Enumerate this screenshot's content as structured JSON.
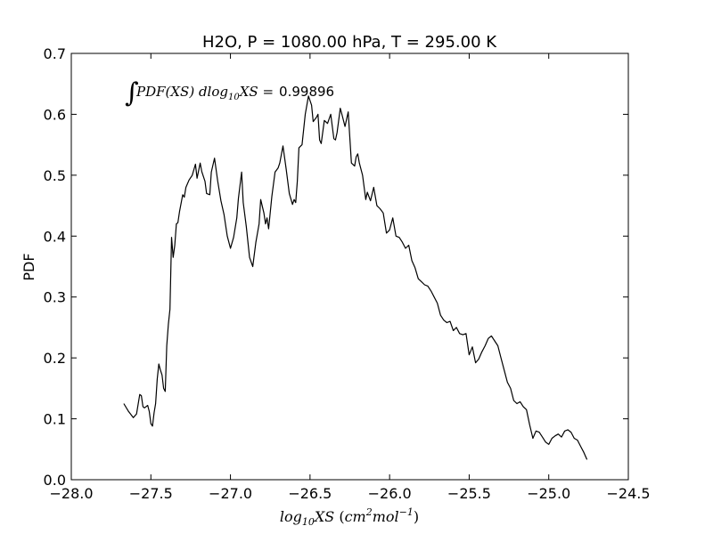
{
  "chart_data": {
    "type": "line",
    "title": "H2O, P = 1080.00 hPa, T = 295.00 K",
    "ylabel": "PDF",
    "xlabel": {
      "base": "log",
      "sub": "10",
      "var": "XS",
      "unit_open": " (",
      "unit_cm": "cm",
      "unit_cm_exp": "2",
      "unit_mol": "mol",
      "unit_mol_exp": "−1",
      "unit_close": ")"
    },
    "annotation": {
      "integral": "∫",
      "integrand": "PDF(XS) dlog",
      "sub": "10",
      "var": "XS",
      "eq": " =",
      "value": "0.99896"
    },
    "xlim": [
      -28.0,
      -24.5
    ],
    "ylim": [
      0.0,
      0.7
    ],
    "xticks": [
      "−28.0",
      "−27.5",
      "−27.0",
      "−26.5",
      "−26.0",
      "−25.5",
      "−25.0",
      "−24.5"
    ],
    "yticks": [
      "0.0",
      "0.1",
      "0.2",
      "0.3",
      "0.4",
      "0.5",
      "0.6",
      "0.7"
    ],
    "line_color": "#000000",
    "grid": false,
    "series": [
      {
        "x": [
          -27.67,
          -27.64,
          -27.61,
          -27.59,
          -27.57,
          -27.56,
          -27.55,
          -27.54,
          -27.52,
          -27.51,
          -27.5,
          -27.49,
          -27.48,
          -27.47,
          -27.46,
          -27.45,
          -27.44,
          -27.43,
          -27.42,
          -27.41,
          -27.4,
          -27.39,
          -27.38,
          -27.37,
          -27.36,
          -27.35,
          -27.34,
          -27.33,
          -27.32,
          -27.3,
          -27.29,
          -27.28,
          -27.26,
          -27.24,
          -27.22,
          -27.21,
          -27.19,
          -27.18,
          -27.16,
          -27.15,
          -27.13,
          -27.12,
          -27.1,
          -27.08,
          -27.06,
          -27.04,
          -27.02,
          -27.0,
          -26.98,
          -26.96,
          -26.95,
          -26.93,
          -26.92,
          -26.9,
          -26.88,
          -26.86,
          -26.84,
          -26.82,
          -26.81,
          -26.79,
          -26.78,
          -26.77,
          -26.76,
          -26.74,
          -26.72,
          -26.7,
          -26.69,
          -26.67,
          -26.65,
          -26.63,
          -26.61,
          -26.6,
          -26.59,
          -26.58,
          -26.57,
          -26.55,
          -26.53,
          -26.51,
          -26.49,
          -26.48,
          -26.46,
          -26.45,
          -26.44,
          -26.43,
          -26.41,
          -26.39,
          -26.37,
          -26.35,
          -26.34,
          -26.33,
          -26.31,
          -26.3,
          -26.28,
          -26.26,
          -26.24,
          -26.22,
          -26.21,
          -26.2,
          -26.19,
          -26.17,
          -26.15,
          -26.14,
          -26.12,
          -26.1,
          -26.08,
          -26.06,
          -26.04,
          -26.02,
          -26.0,
          -25.98,
          -25.96,
          -25.94,
          -25.92,
          -25.9,
          -25.88,
          -25.86,
          -25.84,
          -25.82,
          -25.8,
          -25.78,
          -25.76,
          -25.74,
          -25.72,
          -25.7,
          -25.68,
          -25.66,
          -25.64,
          -25.62,
          -25.6,
          -25.58,
          -25.56,
          -25.54,
          -25.52,
          -25.5,
          -25.48,
          -25.46,
          -25.44,
          -25.42,
          -25.4,
          -25.38,
          -25.36,
          -25.34,
          -25.32,
          -25.3,
          -25.28,
          -25.26,
          -25.24,
          -25.22,
          -25.2,
          -25.18,
          -25.16,
          -25.14,
          -25.12,
          -25.1,
          -25.08,
          -25.06,
          -25.04,
          -25.02,
          -25.0,
          -24.98,
          -24.96,
          -24.94,
          -24.92,
          -24.9,
          -24.88,
          -24.86,
          -24.84,
          -24.82,
          -24.8,
          -24.78,
          -24.76
        ],
        "y": [
          0.125,
          0.112,
          0.102,
          0.108,
          0.14,
          0.138,
          0.12,
          0.118,
          0.122,
          0.112,
          0.092,
          0.088,
          0.11,
          0.125,
          0.165,
          0.19,
          0.18,
          0.172,
          0.15,
          0.145,
          0.22,
          0.255,
          0.28,
          0.398,
          0.365,
          0.385,
          0.42,
          0.422,
          0.44,
          0.468,
          0.464,
          0.48,
          0.492,
          0.5,
          0.518,
          0.495,
          0.52,
          0.506,
          0.49,
          0.47,
          0.468,
          0.505,
          0.528,
          0.49,
          0.458,
          0.435,
          0.4,
          0.38,
          0.398,
          0.43,
          0.462,
          0.505,
          0.455,
          0.415,
          0.365,
          0.35,
          0.39,
          0.42,
          0.46,
          0.438,
          0.42,
          0.43,
          0.412,
          0.465,
          0.505,
          0.512,
          0.52,
          0.548,
          0.51,
          0.47,
          0.452,
          0.46,
          0.455,
          0.49,
          0.545,
          0.55,
          0.6,
          0.63,
          0.615,
          0.588,
          0.595,
          0.6,
          0.558,
          0.552,
          0.59,
          0.585,
          0.6,
          0.56,
          0.558,
          0.57,
          0.61,
          0.6,
          0.58,
          0.604,
          0.52,
          0.515,
          0.53,
          0.535,
          0.52,
          0.5,
          0.46,
          0.472,
          0.458,
          0.48,
          0.45,
          0.445,
          0.438,
          0.405,
          0.41,
          0.43,
          0.4,
          0.398,
          0.39,
          0.38,
          0.385,
          0.36,
          0.348,
          0.33,
          0.325,
          0.32,
          0.318,
          0.31,
          0.3,
          0.29,
          0.27,
          0.262,
          0.258,
          0.26,
          0.245,
          0.25,
          0.24,
          0.238,
          0.24,
          0.205,
          0.218,
          0.192,
          0.198,
          0.21,
          0.22,
          0.232,
          0.236,
          0.228,
          0.22,
          0.2,
          0.18,
          0.16,
          0.15,
          0.13,
          0.125,
          0.128,
          0.12,
          0.115,
          0.09,
          0.068,
          0.08,
          0.078,
          0.07,
          0.062,
          0.058,
          0.068,
          0.072,
          0.075,
          0.07,
          0.08,
          0.082,
          0.078,
          0.068,
          0.065,
          0.055,
          0.045,
          0.033
        ]
      }
    ]
  }
}
